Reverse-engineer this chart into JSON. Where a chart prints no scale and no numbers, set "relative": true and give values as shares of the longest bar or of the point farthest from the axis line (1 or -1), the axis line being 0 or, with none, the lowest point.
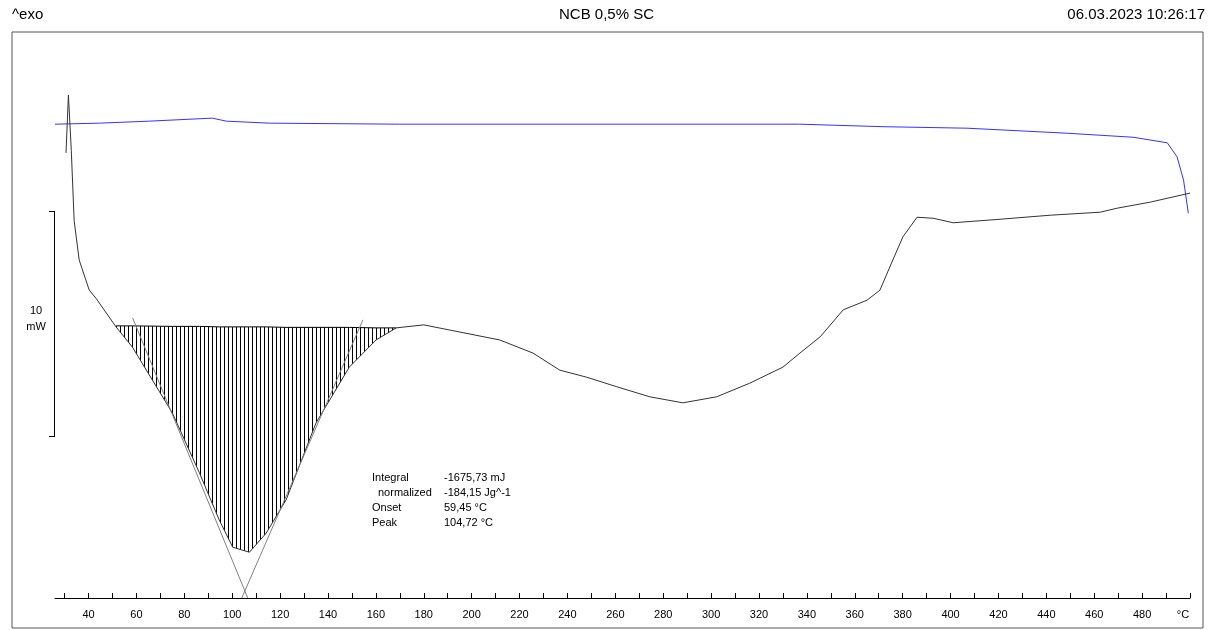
{
  "chart_data": {
    "type": "line",
    "title": "NCB 0,5% SC",
    "xlabel": "°C",
    "relative": true,
    "annotations": [
      "^exo",
      "06.03.2023 10:26:17",
      "10 mW",
      "Integral\t-1675,73 mJ",
      "  normalized\t-184,15 Jg^-1",
      "Onset\t59,45 °C",
      "Peak\t104,72 °C"
    ],
    "xlim": [
      26,
      500
    ],
    "xticks": [
      {
        "value": 30,
        "label": null
      },
      40,
      {
        "value": 50,
        "label": null
      },
      60,
      {
        "value": 70,
        "label": null
      },
      80,
      {
        "value": 90,
        "label": null
      },
      100,
      {
        "value": 110,
        "label": null
      },
      120,
      {
        "value": 130,
        "label": null
      },
      140,
      {
        "value": 150,
        "label": null
      },
      160,
      {
        "value": 170,
        "label": null
      },
      180,
      {
        "value": 190,
        "label": null
      },
      200,
      {
        "value": 210,
        "label": null
      },
      220,
      {
        "value": 230,
        "label": null
      },
      240,
      {
        "value": 250,
        "label": null
      },
      260,
      {
        "value": 270,
        "label": null
      },
      280,
      {
        "value": 290,
        "label": null
      },
      300,
      {
        "value": 310,
        "label": null
      },
      320,
      {
        "value": 330,
        "label": null
      },
      340,
      {
        "value": 350,
        "label": null
      },
      360,
      {
        "value": 370,
        "label": null
      },
      380,
      {
        "value": 390,
        "label": null
      },
      400,
      {
        "value": 410,
        "label": null
      },
      420,
      {
        "value": 430,
        "label": null
      },
      440,
      {
        "value": 450,
        "label": null
      },
      460,
      {
        "value": 470,
        "label": null
      },
      480,
      {
        "value": 490,
        "label": null
      },
      {
        "value": 500,
        "label": null
      }
    ],
    "series": [
      {
        "color": "#3333ff",
        "x": [
          26,
          44.5,
          65.4,
          91.7,
          97.5,
          115.6,
          170,
          337,
          371.8,
          406.9,
          448.7,
          476.3,
          490.5,
          494.6,
          497.3,
          499.3
        ],
        "values": [
          0.942,
          0.944,
          0.948,
          0.954,
          0.948,
          0.944,
          0.942,
          0.942,
          0.937,
          0.934,
          0.924,
          0.916,
          0.905,
          0.877,
          0.831,
          0.765
        ]
      },
      {
        "color": "#333333",
        "x": [
          30.6,
          31.6,
          32.8,
          34,
          36.1,
          40.3,
          43.1,
          51.5,
          58.3,
          75,
          86.3,
          94.6,
          100.2,
          107.2,
          114.2,
          122.5,
          135,
          148.9,
          160.1,
          168.5,
          180,
          211.7,
          225.6,
          236.8,
          248,
          260.6,
          274.4,
          288.2,
          302.3,
          316.1,
          330,
          337.1,
          345.5,
          355.2,
          365.1,
          370.5,
          375.9,
          380.1,
          386,
          392.7,
          401.1,
          420.7,
          441.6,
          462.5,
          469.6,
          483.4,
          500
        ],
        "values": [
          0.885,
          1,
          0.89,
          0.75,
          0.672,
          0.612,
          0.596,
          0.539,
          0.499,
          0.368,
          0.249,
          0.155,
          0.101,
          0.091,
          0.129,
          0.195,
          0.348,
          0.459,
          0.513,
          0.537,
          0.543,
          0.513,
          0.487,
          0.453,
          0.439,
          0.42,
          0.4,
          0.388,
          0.4,
          0.427,
          0.459,
          0.487,
          0.519,
          0.573,
          0.592,
          0.612,
          0.672,
          0.718,
          0.757,
          0.755,
          0.746,
          0.753,
          0.761,
          0.767,
          0.775,
          0.787,
          0.805
        ]
      },
      {
        "color": "#000000",
        "x": [
          51.5,
          58.3,
          75,
          86.3,
          94.6,
          100.2,
          107.2,
          114.2,
          122.5,
          135,
          148.9,
          160.1,
          168.5
        ],
        "values": [
          0.541,
          0.541,
          0.54,
          0.54,
          0.539,
          0.539,
          0.539,
          0.539,
          0.538,
          0.538,
          0.538,
          0.537,
          0.537
        ],
        "lower": [
          0.539,
          0.499,
          0.368,
          0.249,
          0.155,
          0.101,
          0.091,
          0.129,
          0.195,
          0.348,
          0.459,
          0.513,
          0.537
        ],
        "upper": [
          0.541,
          0.541,
          0.54,
          0.54,
          0.539,
          0.539,
          0.539,
          0.539,
          0.538,
          0.538,
          0.538,
          0.537,
          0.537
        ]
      },
      {
        "color": "#808080",
        "x": [
          58.4,
          106.5
        ],
        "values": [
          0.557,
          0
        ]
      },
      {
        "color": "#808080",
        "x": [
          104,
          154.6
        ],
        "values": [
          0,
          0.553
        ]
      }
    ]
  }
}
